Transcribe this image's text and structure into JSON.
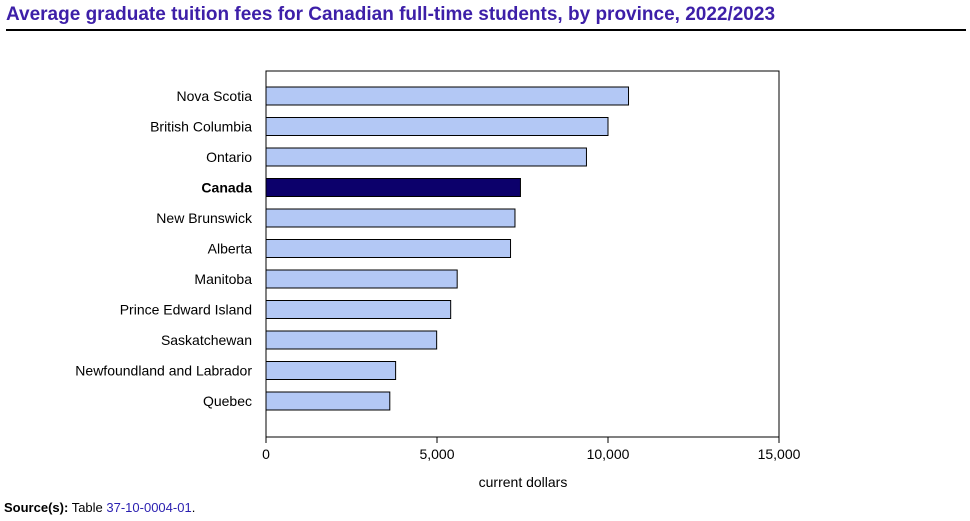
{
  "title": "Average graduate tuition fees for Canadian full-time students, by province, 2022/2023",
  "source": {
    "label": "Source(s):",
    "text": "Table",
    "link": "37-10-0004-01",
    "end": "."
  },
  "colors": {
    "title": "#3d1fa8",
    "bar_default": "#b3c8f5",
    "bar_highlight": "#0c006b",
    "bar_stroke": "#000000",
    "link": "#2a1fb0"
  },
  "chart_data": {
    "type": "bar",
    "orientation": "horizontal",
    "categories": [
      "Nova Scotia",
      "British Columbia",
      "Ontario",
      "Canada",
      "New Brunswick",
      "Alberta",
      "Manitoba",
      "Prince Edward Island",
      "Saskatchewan",
      "Newfoundland and Labrador",
      "Quebec"
    ],
    "values": [
      10600,
      10000,
      9370,
      7440,
      7280,
      7150,
      5590,
      5400,
      4990,
      3790,
      3620
    ],
    "highlight": [
      "Canada"
    ],
    "xlabel": "current dollars",
    "ylabel": "",
    "xlim": [
      0,
      15000
    ],
    "xticks": [
      0,
      5000,
      10000,
      15000
    ],
    "xtick_labels": [
      "0",
      "5,000",
      "10,000",
      "15,000"
    ],
    "grid": false,
    "legend": "none"
  }
}
